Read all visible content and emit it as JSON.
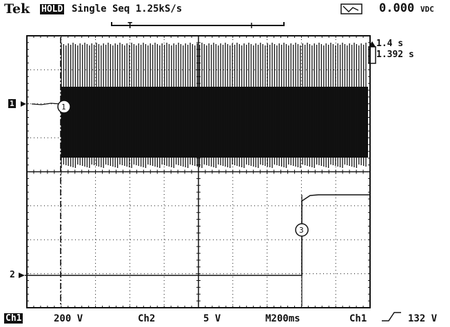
{
  "header": {
    "brand": "Tek",
    "mode_badge": "HOLD",
    "acquisition": "Single Seq 1.25kS/s",
    "readout": "0.000",
    "readout_unit": "VDC"
  },
  "cursors": {
    "delta_time": "1.4 s",
    "absolute_time": "1.392 s"
  },
  "markers": {
    "ch1_label": "1",
    "ch2_label": "2",
    "trigger_label": "T",
    "marker_1": "1",
    "marker_3": "3"
  },
  "footer": {
    "ch1_badge": "Ch1",
    "ch1_scale": "200 V",
    "ch2_label": "Ch2",
    "ch2_scale": "5 V",
    "timebase": "M200ms",
    "trigger_source": "Ch1",
    "trigger_level": "132 V"
  },
  "colors": {
    "trace": "#111111",
    "grid": "#111111",
    "background": "#ffffff"
  },
  "icons": {
    "measure": "waveform-measure-icon"
  }
}
